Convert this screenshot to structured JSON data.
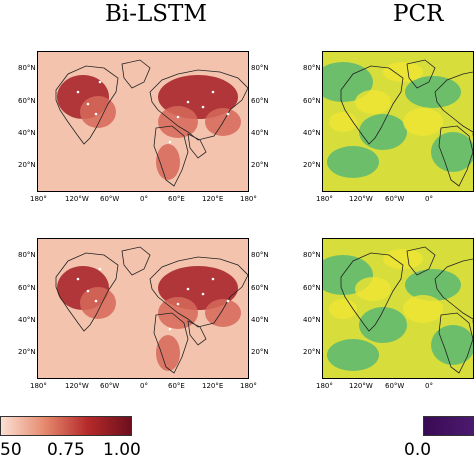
{
  "titles": {
    "bilstm": "Bi-LSTM",
    "pcr": "PCR"
  },
  "lat_ticks": [
    "80°N",
    "60°N",
    "40°N",
    "20°N"
  ],
  "lon_ticks": [
    "180°",
    "120°W",
    "60°W",
    "0°",
    "60°E",
    "120°E",
    "180°"
  ],
  "lon_ticks_pcr": [
    "180°",
    "120°W",
    "60°W",
    "0°"
  ],
  "colorbar_left": {
    "ticks": [
      "50",
      "0.75",
      "1.00"
    ],
    "colors": [
      "#fbe0d4",
      "#e58a6f",
      "#b52a2a",
      "#6e0f1e"
    ]
  },
  "colorbar_right": {
    "ticks": [
      "0.0"
    ],
    "colors": [
      "#3a0a55",
      "#4b1a6e"
    ]
  },
  "map_colors": {
    "bilstm_bg": "#f3c3ae",
    "bilstm_hi": "#a31d25",
    "bilstm_mid": "#d6695a",
    "pcr_bg": "#d7de3c",
    "pcr_green": "#3fb07e",
    "pcr_yellow": "#f0e532"
  }
}
